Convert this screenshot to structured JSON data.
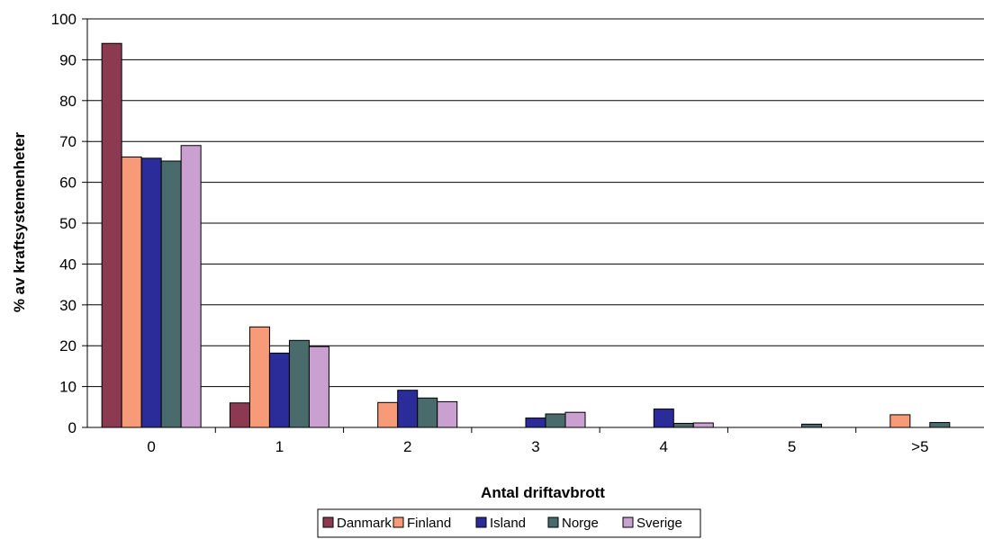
{
  "chart_data": {
    "type": "bar",
    "title": "",
    "xlabel": "Antal driftavbrott",
    "ylabel": "% av kraftsystemenheter",
    "categories": [
      "0",
      "1",
      "2",
      "3",
      "4",
      "5",
      ">5"
    ],
    "ylim": [
      0,
      100
    ],
    "yticks": [
      0,
      10,
      20,
      30,
      40,
      50,
      60,
      70,
      80,
      90,
      100
    ],
    "grid": true,
    "legend_position": "bottom",
    "series": [
      {
        "name": "Danmark",
        "color": "#8B3A52",
        "values": [
          94,
          6,
          0,
          0,
          0,
          0,
          0
        ]
      },
      {
        "name": "Finland",
        "color": "#F79A78",
        "values": [
          66.2,
          24.6,
          6.1,
          0,
          0,
          0,
          3.1
        ]
      },
      {
        "name": "Island",
        "color": "#2B2B99",
        "values": [
          65.9,
          18.2,
          9.1,
          2.3,
          4.5,
          0,
          0
        ]
      },
      {
        "name": "Norge",
        "color": "#4A6B6B",
        "values": [
          65.2,
          21.3,
          7.2,
          3.3,
          1.0,
          0.8,
          1.2
        ]
      },
      {
        "name": "Sverige",
        "color": "#C9A0D0",
        "values": [
          69,
          19.8,
          6.3,
          3.7,
          1.1,
          0,
          0
        ]
      }
    ]
  }
}
